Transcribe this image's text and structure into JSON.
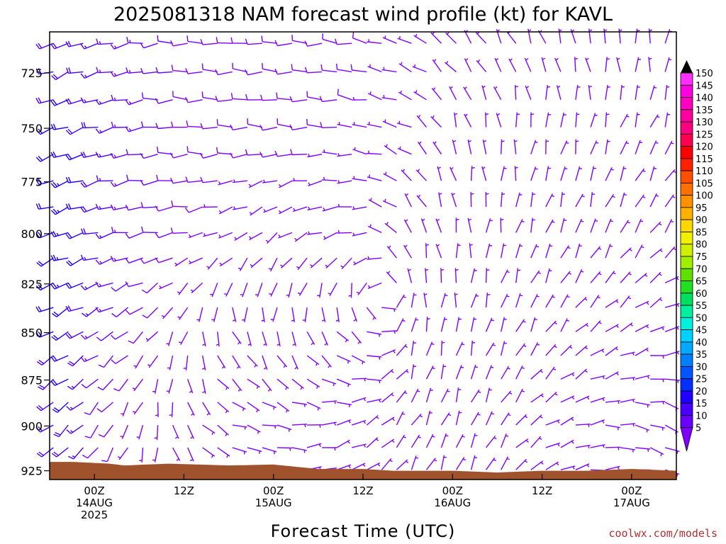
{
  "chart_data": {
    "type": "wind-barb-time-height",
    "title": "2025081318 NAM forecast wind profile (kt) for KAVL",
    "xlabel": "Forecast Time (UTC)",
    "ylabel": "",
    "y_axis": {
      "unit": "hPa",
      "inverted": true,
      "range": [
        930,
        707
      ],
      "ticks": [
        725,
        750,
        775,
        800,
        825,
        850,
        875,
        900,
        925
      ]
    },
    "x_axis": {
      "range_hours": [
        -6,
        78
      ],
      "ticks": [
        {
          "hour": 0,
          "lines": [
            "00Z",
            "14AUG",
            "2025"
          ]
        },
        {
          "hour": 12,
          "lines": [
            "12Z"
          ]
        },
        {
          "hour": 24,
          "lines": [
            "00Z",
            "15AUG"
          ]
        },
        {
          "hour": 36,
          "lines": [
            "12Z"
          ]
        },
        {
          "hour": 48,
          "lines": [
            "00Z",
            "16AUG"
          ]
        },
        {
          "hour": 60,
          "lines": [
            "12Z"
          ]
        },
        {
          "hour": 72,
          "lines": [
            "00Z",
            "17AUG"
          ]
        }
      ]
    },
    "colorbar": {
      "unit": "kt",
      "levels": [
        5,
        10,
        15,
        20,
        25,
        30,
        35,
        40,
        45,
        50,
        55,
        60,
        65,
        70,
        75,
        80,
        85,
        90,
        95,
        100,
        105,
        110,
        115,
        120,
        125,
        130,
        135,
        140,
        145,
        150
      ],
      "colors": [
        "#8000ff",
        "#6a00ff",
        "#4a00ff",
        "#2000ff",
        "#0030ff",
        "#0055ff",
        "#007fff",
        "#00aaff",
        "#00d0ff",
        "#00f0e0",
        "#00f0a0",
        "#00e060",
        "#20e020",
        "#60e000",
        "#a0f000",
        "#d0f000",
        "#f0f000",
        "#ffd800",
        "#ffb000",
        "#ff9000",
        "#ff7000",
        "#ff5000",
        "#ff2000",
        "#ff0000",
        "#ff0050",
        "#ff0080",
        "#ff00a0",
        "#ff00c0",
        "#ff00e0",
        "#ff30ff"
      ]
    },
    "terrain": {
      "color": "#a0522d",
      "surface_pressure": [
        {
          "hour": -3,
          "p": 920
        },
        {
          "hour": 2,
          "p": 921
        },
        {
          "hour": 4,
          "p": 922
        },
        {
          "hour": 10,
          "p": 921
        },
        {
          "hour": 18,
          "p": 922
        },
        {
          "hour": 24,
          "p": 921.5
        },
        {
          "hour": 30,
          "p": 924
        },
        {
          "hour": 36,
          "p": 924
        },
        {
          "hour": 40,
          "p": 925
        },
        {
          "hour": 48,
          "p": 925
        },
        {
          "hour": 54,
          "p": 926
        },
        {
          "hour": 60,
          "p": 925
        },
        {
          "hour": 66,
          "p": 925
        },
        {
          "hour": 72,
          "p": 924
        },
        {
          "hour": 78,
          "p": 925
        }
      ]
    },
    "wind_profiles": [
      {
        "hour": -6,
        "levels": [
          [
            900,
            230,
            18
          ],
          [
            850,
            240,
            20
          ],
          [
            800,
            250,
            20
          ],
          [
            750,
            250,
            20
          ],
          [
            725,
            250,
            18
          ]
        ]
      },
      {
        "hour": -3,
        "levels": [
          [
            900,
            230,
            20
          ],
          [
            850,
            240,
            22
          ],
          [
            800,
            250,
            25
          ],
          [
            750,
            250,
            22
          ],
          [
            725,
            250,
            20
          ]
        ]
      },
      {
        "hour": 0,
        "levels": [
          [
            900,
            220,
            10
          ],
          [
            850,
            240,
            15
          ],
          [
            800,
            255,
            18
          ],
          [
            750,
            255,
            18
          ],
          [
            725,
            255,
            16
          ]
        ]
      },
      {
        "hour": 6,
        "levels": [
          [
            900,
            200,
            5
          ],
          [
            850,
            230,
            8
          ],
          [
            800,
            260,
            12
          ],
          [
            750,
            260,
            13
          ],
          [
            725,
            260,
            13
          ]
        ]
      },
      {
        "hour": 12,
        "levels": [
          [
            900,
            150,
            5
          ],
          [
            850,
            200,
            5
          ],
          [
            800,
            260,
            8
          ],
          [
            750,
            270,
            10
          ],
          [
            725,
            270,
            10
          ]
        ]
      },
      {
        "hour": 18,
        "levels": [
          [
            900,
            110,
            5
          ],
          [
            850,
            150,
            5
          ],
          [
            800,
            250,
            6
          ],
          [
            750,
            270,
            8
          ],
          [
            725,
            270,
            9
          ]
        ]
      },
      {
        "hour": 24,
        "levels": [
          [
            900,
            100,
            5
          ],
          [
            850,
            170,
            5
          ],
          [
            800,
            230,
            6
          ],
          [
            750,
            270,
            8
          ],
          [
            725,
            270,
            9
          ]
        ]
      },
      {
        "hour": 30,
        "levels": [
          [
            900,
            80,
            5
          ],
          [
            850,
            150,
            5
          ],
          [
            800,
            250,
            6
          ],
          [
            750,
            270,
            8
          ],
          [
            725,
            270,
            8
          ]
        ]
      },
      {
        "hour": 36,
        "levels": [
          [
            900,
            60,
            5
          ],
          [
            850,
            120,
            5
          ],
          [
            800,
            260,
            6
          ],
          [
            750,
            280,
            7
          ],
          [
            725,
            280,
            8
          ]
        ]
      },
      {
        "hour": 42,
        "levels": [
          [
            900,
            30,
            5
          ],
          [
            850,
            10,
            5
          ],
          [
            800,
            330,
            5
          ],
          [
            750,
            290,
            6
          ],
          [
            725,
            290,
            6
          ]
        ]
      },
      {
        "hour": 48,
        "levels": [
          [
            900,
            20,
            5
          ],
          [
            850,
            10,
            5
          ],
          [
            800,
            350,
            5
          ],
          [
            750,
            340,
            5
          ],
          [
            725,
            320,
            5
          ]
        ]
      },
      {
        "hour": 54,
        "levels": [
          [
            900,
            30,
            5
          ],
          [
            850,
            20,
            5
          ],
          [
            800,
            10,
            5
          ],
          [
            750,
            350,
            5
          ],
          [
            725,
            330,
            5
          ]
        ]
      },
      {
        "hour": 60,
        "levels": [
          [
            900,
            60,
            5
          ],
          [
            850,
            30,
            5
          ],
          [
            800,
            20,
            5
          ],
          [
            750,
            10,
            5
          ],
          [
            725,
            340,
            5
          ]
        ]
      },
      {
        "hour": 66,
        "levels": [
          [
            900,
            80,
            5
          ],
          [
            850,
            50,
            5
          ],
          [
            800,
            20,
            5
          ],
          [
            750,
            10,
            5
          ],
          [
            725,
            350,
            5
          ]
        ]
      },
      {
        "hour": 72,
        "levels": [
          [
            900,
            100,
            5
          ],
          [
            850,
            60,
            5
          ],
          [
            800,
            30,
            5
          ],
          [
            750,
            20,
            5
          ],
          [
            725,
            360,
            5
          ]
        ]
      },
      {
        "hour": 78,
        "levels": [
          [
            900,
            120,
            5
          ],
          [
            850,
            80,
            5
          ],
          [
            800,
            40,
            5
          ],
          [
            750,
            20,
            5
          ],
          [
            725,
            10,
            5
          ]
        ]
      }
    ],
    "credit": "coolwx.com/models"
  }
}
